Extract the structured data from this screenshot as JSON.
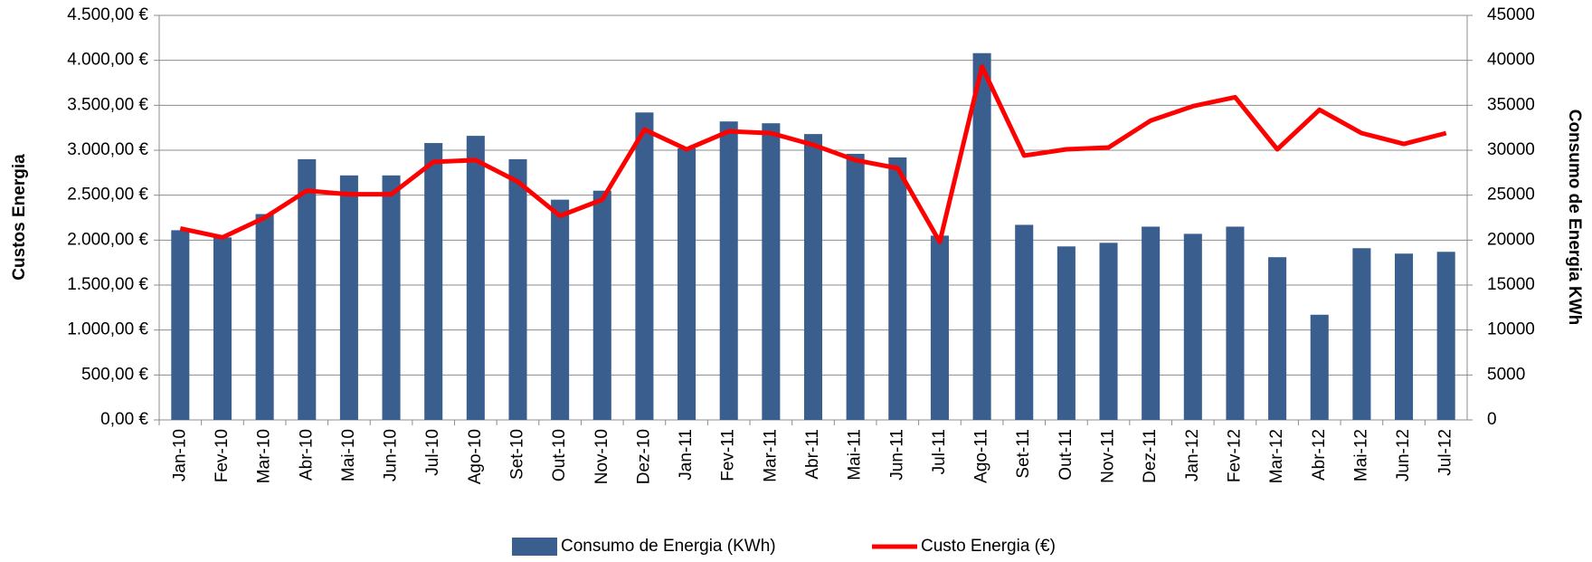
{
  "chart_data": {
    "type": "bar-line",
    "ylabel": "Custos Energia",
    "y2label": "Consumo de Energia KWh",
    "categories": [
      "Jan-10",
      "Fev-10",
      "Mar-10",
      "Abr-10",
      "Mai-10",
      "Jun-10",
      "Jul-10",
      "Ago-10",
      "Set-10",
      "Out-10",
      "Nov-10",
      "Dez-10",
      "Jan-11",
      "Fev-11",
      "Mar-11",
      "Abr-11",
      "Mai-11",
      "Jun-11",
      "Jul-11",
      "Ago-11",
      "Set-11",
      "Out-11",
      "Nov-11",
      "Dez-11",
      "Jan-12",
      "Fev-12",
      "Mar-12",
      "Abr-12",
      "Mai-12",
      "Jun-12",
      "Jul-12"
    ],
    "series": [
      {
        "name": "Consumo de Energia (KWh)",
        "type": "bar",
        "axis": "y2",
        "color": "#3a5f8f",
        "values": [
          21100,
          20300,
          22900,
          29000,
          27200,
          27200,
          30800,
          31600,
          29000,
          24500,
          25500,
          34200,
          30200,
          33200,
          33000,
          31800,
          29600,
          29200,
          20500,
          40800,
          21700,
          19300,
          19700,
          21500,
          20700,
          21500,
          18100,
          11700,
          19100,
          18500,
          18700
        ]
      },
      {
        "name": "Custo Energia (€)",
        "type": "line",
        "axis": "y",
        "color": "#ff0000",
        "values": [
          2130,
          2030,
          2250,
          2550,
          2510,
          2510,
          2870,
          2890,
          2650,
          2270,
          2450,
          3230,
          3010,
          3210,
          3190,
          3060,
          2890,
          2800,
          1980,
          3930,
          2940,
          3010,
          3030,
          3330,
          3490,
          3590,
          3010,
          3450,
          3190,
          3070,
          3190
        ]
      }
    ],
    "ylim": [
      0,
      4500
    ],
    "yticks": [
      {
        "value": 0,
        "label": "0,00 €"
      },
      {
        "value": 500,
        "label": "500,00 €"
      },
      {
        "value": 1000,
        "label": "1.000,00 €"
      },
      {
        "value": 1500,
        "label": "1.500,00 €"
      },
      {
        "value": 2000,
        "label": "2.000,00 €"
      },
      {
        "value": 2500,
        "label": "2.500,00 €"
      },
      {
        "value": 3000,
        "label": "3.000,00 €"
      },
      {
        "value": 3500,
        "label": "3.500,00 €"
      },
      {
        "value": 4000,
        "label": "4.000,00 €"
      },
      {
        "value": 4500,
        "label": "4.500,00 €"
      }
    ],
    "y2lim": [
      0,
      45000
    ],
    "y2ticks": [
      0,
      5000,
      10000,
      15000,
      20000,
      25000,
      30000,
      35000,
      40000,
      45000
    ],
    "grid": true,
    "legend": "bottom"
  }
}
